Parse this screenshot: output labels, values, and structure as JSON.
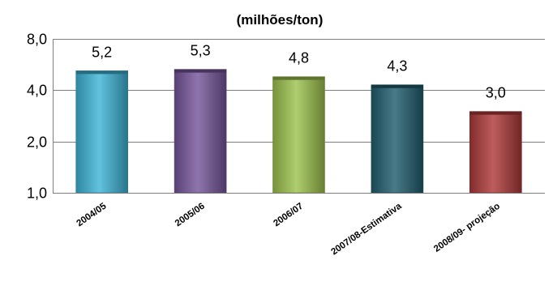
{
  "chart_data": {
    "type": "bar",
    "title": "(milhões/ton)",
    "xlabel": "",
    "ylabel": "",
    "categories": [
      "2004/05",
      "2005/06",
      "2006/07",
      "2007/08-Estimativa",
      "2008/09- projeção"
    ],
    "values": [
      5.2,
      5.3,
      4.8,
      4.3,
      3.0
    ],
    "data_labels": [
      "5,2",
      "5,3",
      "4,8",
      "4,3",
      "3,0"
    ],
    "y_ticks": [
      {
        "value": 1.0,
        "label": "1,0"
      },
      {
        "value": 2.0,
        "label": "2,0"
      },
      {
        "value": 4.0,
        "label": "4,0"
      },
      {
        "value": 8.0,
        "label": "8,0"
      }
    ],
    "ylim": [
      1.0,
      8.0
    ],
    "y_scale": "log",
    "grid": true,
    "legend": "none",
    "colors": [
      "#3fb4d8",
      "#76579b",
      "#9ec34f",
      "#215e6e",
      "#b03a3a"
    ]
  }
}
